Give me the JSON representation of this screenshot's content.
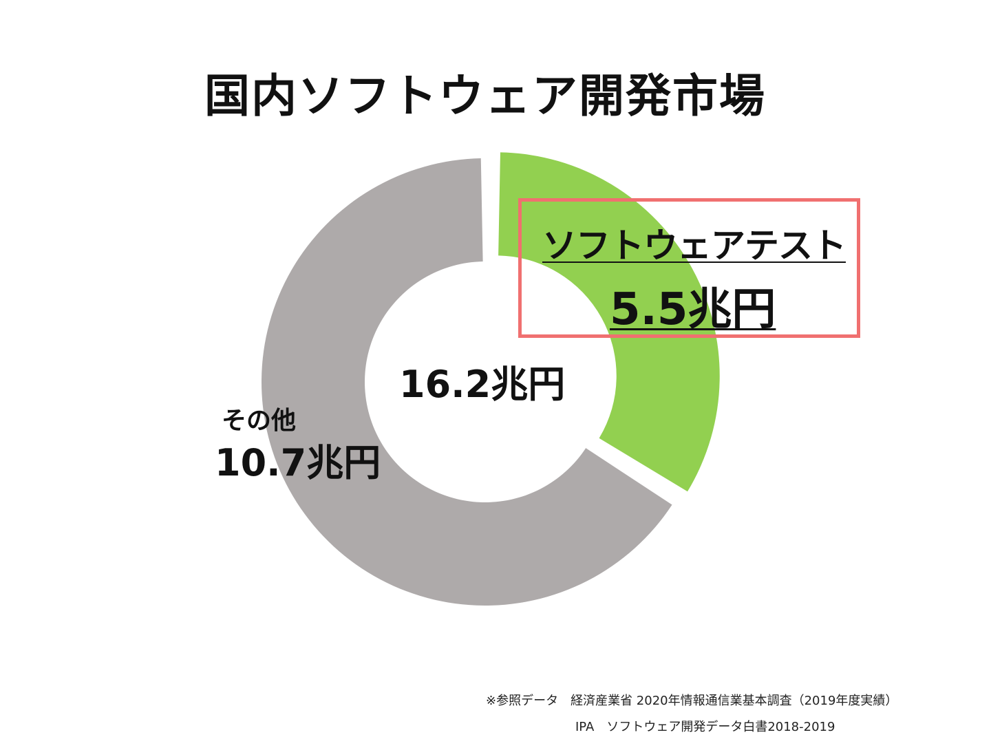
{
  "title": "国内ソフトウェア開発市場",
  "chart_data": {
    "type": "pie",
    "variant": "donut",
    "total_label": "16.2兆円",
    "total": 16.2,
    "unit": "兆円",
    "slices": [
      {
        "name": "ソフトウェアテスト",
        "value": 5.5,
        "label": "5.5兆円",
        "color": "#92d050",
        "exploded": true
      },
      {
        "name": "その他",
        "value": 10.7,
        "label": "10.7兆円",
        "color": "#aeaaaa",
        "exploded": false
      }
    ]
  },
  "callout": {
    "name": "ソフトウェアテスト",
    "value": "5.5兆円",
    "border_color": "#f07070"
  },
  "other_label": {
    "name": "その他",
    "value": "10.7兆円"
  },
  "source": {
    "line1": "※参照データ　経済産業省 2020年情報通信業基本調査（2019年度実績）",
    "line2": "IPA　ソフトウェア開発データ白書2018-2019"
  }
}
